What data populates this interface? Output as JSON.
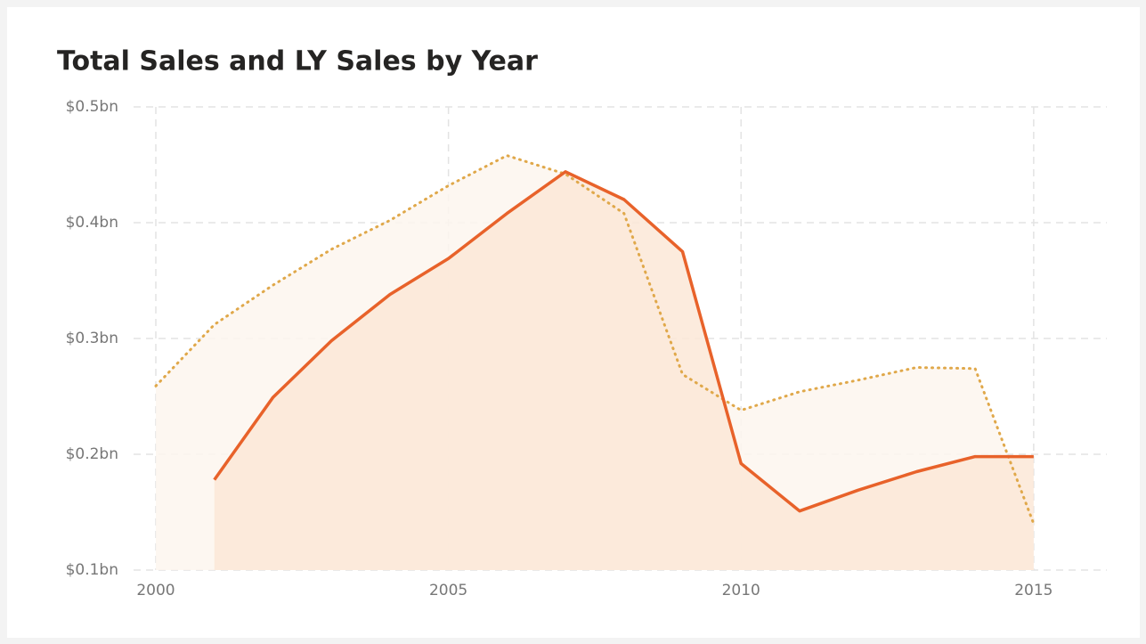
{
  "chart_data": {
    "type": "line",
    "title": "Total Sales and LY Sales by Year",
    "x": [
      2000,
      2001,
      2002,
      2003,
      2004,
      2005,
      2006,
      2007,
      2008,
      2009,
      2010,
      2011,
      2012,
      2013,
      2014,
      2015
    ],
    "series": [
      {
        "color": "#e0a84a",
        "dash": "dotted",
        "fill": "#fdf6ee",
        "values": [
          0.259,
          0.312,
          0.346,
          0.377,
          0.402,
          0.432,
          0.458,
          0.442,
          0.408,
          0.269,
          0.238,
          0.254,
          0.264,
          0.275,
          0.274,
          0.14
        ]
      },
      {
        "color": "#e8622a",
        "dash": "solid",
        "fill": "#fbe8d7",
        "values": [
          null,
          0.178,
          0.249,
          0.298,
          0.338,
          0.369,
          0.408,
          0.444,
          0.42,
          0.375,
          0.192,
          0.151,
          0.169,
          0.185,
          0.198,
          0.198
        ]
      }
    ],
    "xlim": [
      2000,
      2016.25
    ],
    "xticks": [
      2000,
      2005,
      2010,
      2015
    ],
    "ylim": [
      0.1,
      0.5
    ],
    "yticks": [
      {
        "value": 0.1,
        "label": "$0.1bn"
      },
      {
        "value": 0.2,
        "label": "$0.2bn"
      },
      {
        "value": 0.3,
        "label": "$0.3bn"
      },
      {
        "value": 0.4,
        "label": "$0.4bn"
      },
      {
        "value": 0.5,
        "label": "$0.5bn"
      }
    ],
    "grid": true
  }
}
